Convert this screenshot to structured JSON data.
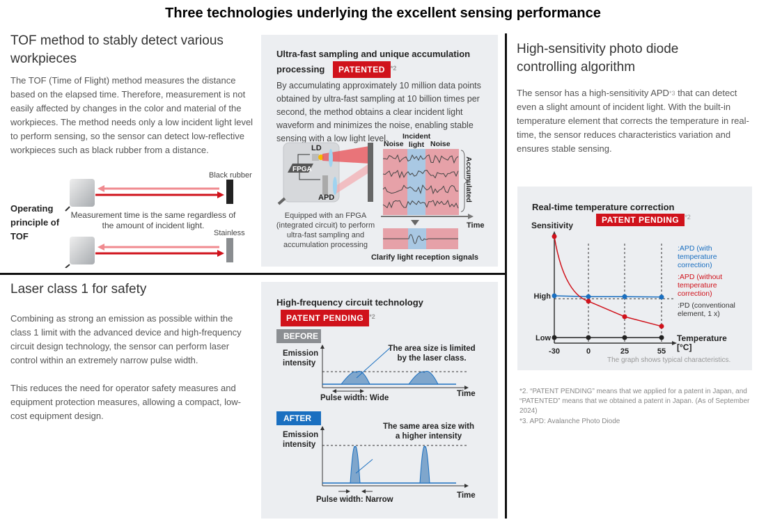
{
  "title": "Three technologies underlying the excellent sensing performance",
  "tof": {
    "heading": "TOF method to stably detect various workpieces",
    "body": "The TOF (Time of Flight) method measures the distance based on the elapsed time. Therefore, measurement is not easily affected by changes in the color and material of the workpieces. The method needs only a low incident light level to perform sensing, so the sensor can detect low-reflective workpieces such as black rubber from a distance.",
    "diagram_label": "Operating principle of TOF",
    "target1": "Black rubber",
    "target2": "Stainless",
    "caption": "Measurement time is the same regardless of the amount of incident light."
  },
  "sampling": {
    "heading": "Ultra-fast sampling and unique accumulation processing",
    "badge": "PATENTED",
    "note": "*2",
    "body": "By accumulating approximately 10 million data points obtained by ultra-fast sampling at 10 billion times per second, the method obtains a clear incident light waveform and minimizes the noise, enabling stable sensing with a low light level.",
    "ld": "LD",
    "fpga": "FPGA",
    "apd": "APD",
    "noise": "Noise",
    "incident": "Incident light",
    "accumulated": "Accumulated",
    "time": "Time",
    "fpga_caption": "Equipped with an FPGA (integrated circuit) to perform ultra-fast sampling and accumulation processing",
    "result_caption": "Clarify light reception signals"
  },
  "apd": {
    "heading": "High-sensitivity photo diode controlling algorithm",
    "body_1": "The sensor has a high-sensitivity APD",
    "body_sup": "*3",
    "body_2": " that can detect even a slight amount of incident light. With the built-in temperature element that corrects the temperature in real-time, the sensor reduces characteristics variation and ensures stable sensing."
  },
  "laser": {
    "heading": "Laser class 1 for safety",
    "body_1": "Combining as strong an emission as possible within the class 1 limit with the advanced device and high-frequency circuit design technology, the sensor can perform laser control within an extremely narrow pulse width.",
    "body_2": "This reduces the need for operator safety measures and equipment protection measures, allowing a compact, low-cost equipment design."
  },
  "hf": {
    "heading": "High-frequency circuit technology",
    "badge": "PATENT PENDING",
    "note": "*2",
    "before": "BEFORE",
    "after": "AFTER",
    "ylabel": "Emission intensity",
    "xlabel": "Time",
    "before_note": "The area size is limited by the laser class.",
    "before_width": "Pulse width: Wide",
    "after_note": "The same area size with a higher intensity",
    "after_width": "Pulse width: Narrow"
  },
  "chart_data": {
    "type": "line",
    "title": "Real-time temperature correction",
    "badge": "PATENT PENDING",
    "note": "*2",
    "ylabel": "Sensitivity",
    "xlabel": "Temperature [°C]",
    "x": [
      -30,
      0,
      25,
      55
    ],
    "x_tick_labels": [
      "-30",
      "0",
      "25",
      "55"
    ],
    "y_tick_labels": [
      "Low",
      "High"
    ],
    "y_ticks": [
      0,
      1
    ],
    "grid": "dashed verticals at 0, 25, 55",
    "series": [
      {
        "name": ":APD (with temperature correction)",
        "color": "#1a6fc0",
        "values": [
          1.0,
          0.98,
          0.98,
          0.97
        ]
      },
      {
        "name": ":APD (without temperature correction)",
        "color": "#d0121b",
        "values": [
          2.42,
          0.87,
          0.5,
          0.27
        ]
      },
      {
        "name": ":PD (conventional element, 1 x)",
        "color": "#222222",
        "values": [
          0,
          0,
          0,
          0
        ]
      }
    ],
    "legend": "right",
    "footnote": "The graph shows typical characteristics."
  },
  "footnotes": [
    "*2. “PATENT PENDING” means that we applied for a patent in Japan, and “PATENTED” means that we obtained a patent in Japan. (As of September 2024)",
    "*3. APD: Avalanche Photo Diode"
  ]
}
